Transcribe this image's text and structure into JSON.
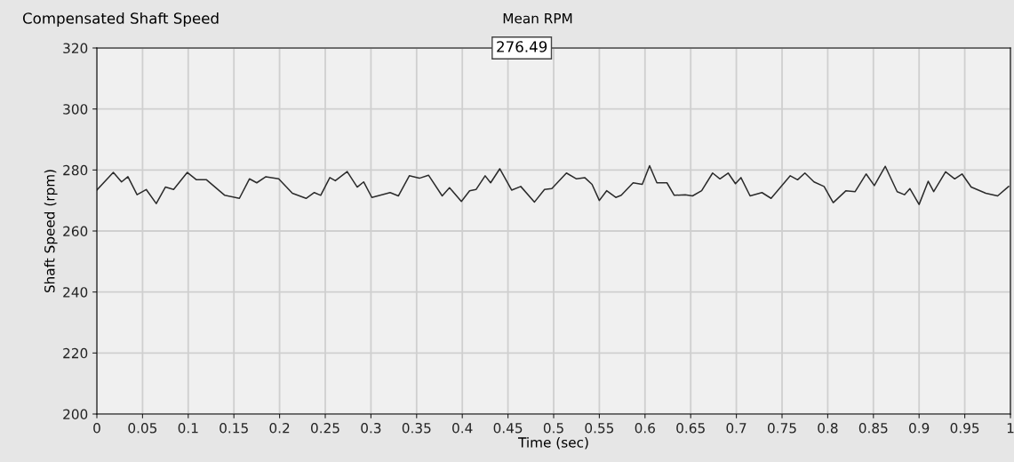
{
  "chart_data": {
    "type": "line",
    "title": "Compensated Shaft Speed",
    "xlabel": "Time (sec)",
    "ylabel": "Shaft Speed (rpm)",
    "annotations": [
      "Mean RPM",
      "276.49"
    ],
    "xlim": [
      0,
      1
    ],
    "xticks": [
      0,
      0.05,
      0.1,
      0.15,
      0.2,
      0.25,
      0.3,
      0.35,
      0.4,
      0.45,
      0.5,
      0.55,
      0.6,
      0.65,
      0.7,
      0.75,
      0.8,
      0.85,
      0.9,
      0.95,
      1
    ],
    "ylim": [
      200,
      320
    ],
    "yticks": [
      200,
      220,
      240,
      260,
      280,
      300,
      320
    ],
    "grid": true,
    "series": [
      {
        "color": "#2b2b2b",
        "x": [
          0,
          0.018,
          0.027,
          0.034,
          0.044,
          0.054,
          0.065,
          0.075,
          0.084,
          0.099,
          0.109,
          0.12,
          0.14,
          0.156,
          0.167,
          0.175,
          0.185,
          0.199,
          0.214,
          0.229,
          0.238,
          0.245,
          0.255,
          0.261,
          0.274,
          0.285,
          0.292,
          0.301,
          0.321,
          0.33,
          0.342,
          0.353,
          0.363,
          0.378,
          0.386,
          0.399,
          0.408,
          0.415,
          0.425,
          0.431,
          0.441,
          0.454,
          0.464,
          0.479,
          0.49,
          0.498,
          0.514,
          0.525,
          0.534,
          0.542,
          0.55,
          0.558,
          0.568,
          0.574,
          0.587,
          0.597,
          0.605,
          0.613,
          0.624,
          0.632,
          0.644,
          0.652,
          0.662,
          0.674,
          0.682,
          0.691,
          0.699,
          0.705,
          0.715,
          0.728,
          0.738,
          0.759,
          0.767,
          0.775,
          0.785,
          0.796,
          0.806,
          0.82,
          0.83,
          0.842,
          0.851,
          0.863,
          0.876,
          0.884,
          0.89,
          0.9,
          0.91,
          0.916,
          0.929,
          0.939,
          0.947,
          0.957,
          0.973,
          0.986,
          0.998
        ],
        "values": [
          273.4,
          279.2,
          276.1,
          277.8,
          271.9,
          273.6,
          269.0,
          274.4,
          273.6,
          279.2,
          276.8,
          276.8,
          271.7,
          270.7,
          277.1,
          275.8,
          277.8,
          277.1,
          272.4,
          270.7,
          272.6,
          271.7,
          277.5,
          276.5,
          279.5,
          274.4,
          276.1,
          271.0,
          272.6,
          271.5,
          278.1,
          277.3,
          278.3,
          271.5,
          274.2,
          269.7,
          273.2,
          273.6,
          278.1,
          275.8,
          280.4,
          273.4,
          274.6,
          269.5,
          273.6,
          273.9,
          279.0,
          277.1,
          277.5,
          275.3,
          270.0,
          273.2,
          271.0,
          271.7,
          275.8,
          275.3,
          281.4,
          275.8,
          275.8,
          271.7,
          271.9,
          271.5,
          273.2,
          279.0,
          277.1,
          279.0,
          275.5,
          277.5,
          271.5,
          272.6,
          270.7,
          278.1,
          276.8,
          279.0,
          276.1,
          274.6,
          269.3,
          273.2,
          272.9,
          278.7,
          274.9,
          281.2,
          272.9,
          271.9,
          273.9,
          268.7,
          276.3,
          272.9,
          279.4,
          277.1,
          278.7,
          274.4,
          272.4,
          271.5,
          274.6
        ]
      }
    ]
  }
}
